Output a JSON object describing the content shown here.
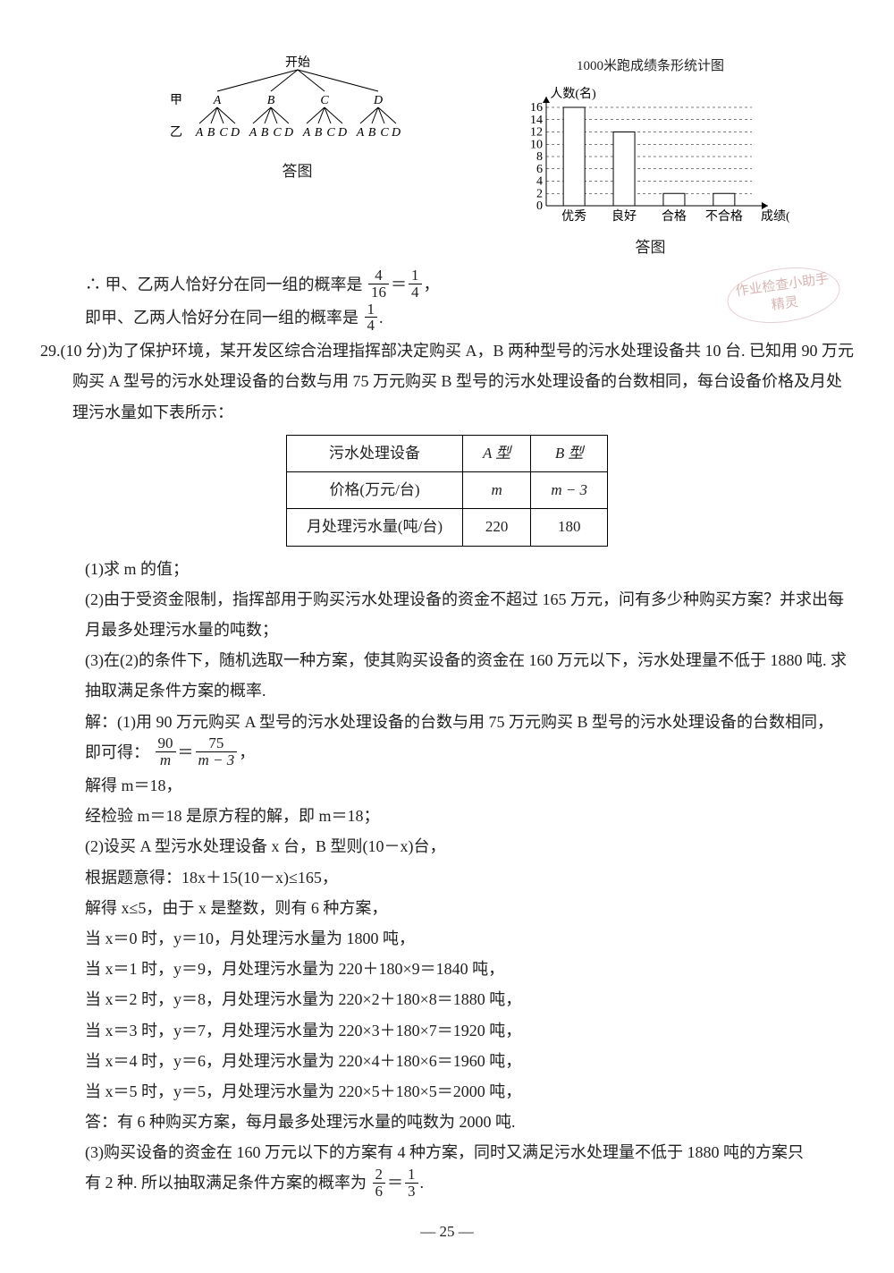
{
  "bar_chart": {
    "title": "1000米跑成绩条形统计图",
    "ylabel": "人数(名)",
    "xlabel": "成绩(等级)",
    "yticks": [
      0,
      2,
      4,
      6,
      8,
      10,
      12,
      14,
      16
    ],
    "categories": [
      "优秀",
      "良好",
      "合格",
      "不合格"
    ],
    "values": [
      16,
      12,
      2,
      2
    ],
    "bar_color": "#ffffff",
    "bar_stroke": "#000000",
    "grid_style": "dashed"
  },
  "tree": {
    "root": "开始",
    "level1_label_left": "甲",
    "level1": [
      "A",
      "B",
      "C",
      "D"
    ],
    "level2_label_left": "乙",
    "level2_pattern": [
      "A",
      "B",
      "C",
      "D"
    ],
    "caption": "答图"
  },
  "chart_caption": "答图",
  "line28a": "∴ 甲、乙两人恰好分在同一组的概率是",
  "frac28a_n": "4",
  "frac28a_d": "16",
  "frac28b_n": "1",
  "frac28b_d": "4",
  "line28b": "即甲、乙两人恰好分在同一组的概率是",
  "p29_num": "29.",
  "p29_pts": "(10 分)",
  "p29_body1": "为了保护环境，某开发区综合治理指挥部决定购买 A，B 两种型号的污水处理设备共 10 台. 已知用 90 万元购买 A 型号的污水处理设备的台数与用 75 万元购买 B 型号的污水处理设备的台数相同，每台设备价格及月处理污水量如下表所示：",
  "tbl": {
    "h1": "污水处理设备",
    "h2": "A 型",
    "h3": "B 型",
    "r2c1": "价格(万元/台)",
    "r2c2": "m",
    "r2c3": "m − 3",
    "r3c1": "月处理污水量(吨/台)",
    "r3c2": "220",
    "r3c3": "180"
  },
  "q1": "(1)求 m 的值；",
  "q2": "(2)由于受资金限制，指挥部用于购买污水处理设备的资金不超过 165 万元，问有多少种购买方案？并求出每月最多处理污水量的吨数；",
  "q3": "(3)在(2)的条件下，随机选取一种方案，使其购买设备的资金在 160 万元以下，污水处理量不低于 1880 吨. 求抽取满足条件方案的概率.",
  "s1a": "解：(1)用 90 万元购买 A 型号的污水处理设备的台数与用 75 万元购买 B 型号的污水处理设备的台数相同，",
  "s1b": "即可得：",
  "s1_fr1n": "90",
  "s1_fr1d": "m",
  "s1_fr2n": "75",
  "s1_fr2d": "m − 3",
  "s1c": "解得 m＝18，",
  "s1d": "经检验 m＝18 是原方程的解，即 m＝18；",
  "s2a": "(2)设买 A 型污水处理设备 x 台，B 型则(10－x)台，",
  "s2b": "根据题意得：18x＋15(10－x)≤165，",
  "s2c": "解得 x≤5，由于 x 是整数，则有 6 种方案，",
  "cases": [
    "当 x＝0 时，y＝10，月处理污水量为 1800 吨，",
    "当 x＝1 时，y＝9，月处理污水量为 220＋180×9＝1840 吨，",
    "当 x＝2 时，y＝8，月处理污水量为 220×2＋180×8＝1880 吨，",
    "当 x＝3 时，y＝7，月处理污水量为 220×3＋180×7＝1920 吨，",
    "当 x＝4 时，y＝6，月处理污水量为 220×4＋180×6＝1960 吨，",
    "当 x＝5 时，y＝5，月处理污水量为 220×5＋180×5＝2000 吨，"
  ],
  "s2d": "答：有 6 种购买方案，每月最多处理污水量的吨数为 2000 吨.",
  "s3a": "(3)购买设备的资金在 160 万元以下的方案有 4 种方案，同时又满足污水处理量不低于 1880 吨的方案只",
  "s3b": "有 2 种. 所以抽取满足条件方案的概率为",
  "s3_fr1n": "2",
  "s3_fr1d": "6",
  "s3_fr2n": "1",
  "s3_fr2d": "3",
  "pagenum": "— 25 —",
  "stamp1": "作业检查小助手",
  "stamp2": "精灵"
}
